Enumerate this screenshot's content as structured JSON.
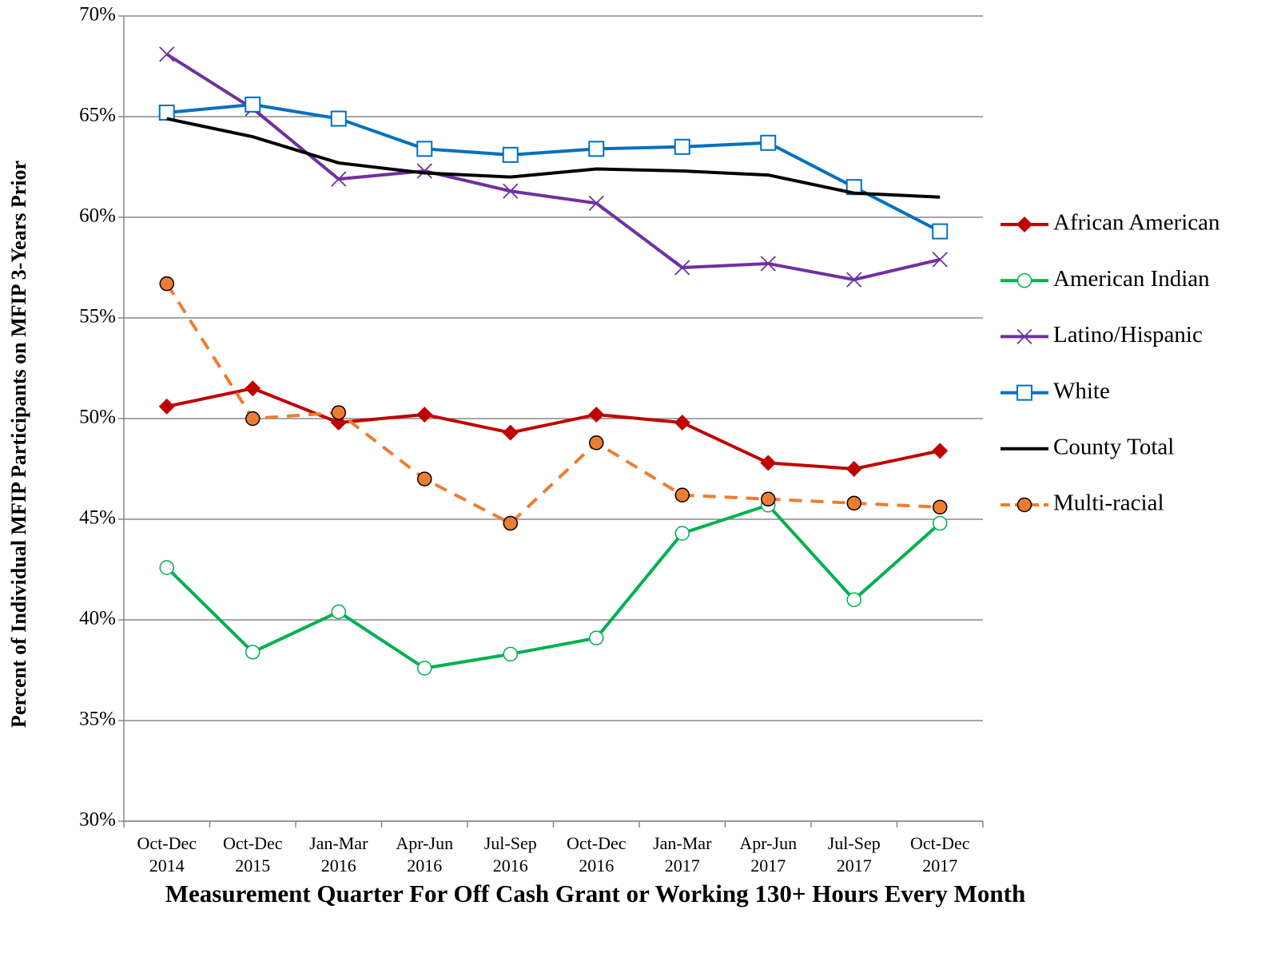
{
  "chart_data": {
    "type": "line",
    "x_label": "Measurement Quarter For Off Cash Grant or Working 130+ Hours Every Month",
    "y_label": "Percent of Individual MFIP Participants on MFIP 3-Years Prior",
    "categories": [
      "Oct-Dec 2014",
      "Oct-Dec 2015",
      "Jan-Mar 2016",
      "Apr-Jun 2016",
      "Jul-Sep 2016",
      "Oct-Dec 2016",
      "Jan-Mar 2017",
      "Apr-Jun 2017",
      "Jul-Sep 2017",
      "Oct-Dec 2017"
    ],
    "ylim": [
      30,
      70
    ],
    "yticks": [
      {
        "value": 30,
        "label": "30%"
      },
      {
        "value": 35,
        "label": "35%"
      },
      {
        "value": 40,
        "label": "40%"
      },
      {
        "value": 45,
        "label": "45%"
      },
      {
        "value": 50,
        "label": "50%"
      },
      {
        "value": 55,
        "label": "55%"
      },
      {
        "value": 60,
        "label": "60%"
      },
      {
        "value": 65,
        "label": "65%"
      },
      {
        "value": 70,
        "label": "70%"
      }
    ],
    "grid": true,
    "legend": "right",
    "series": [
      {
        "name": "African American",
        "color": "#c00000",
        "marker": "diamond",
        "dash": false,
        "values": [
          50.6,
          51.5,
          49.8,
          50.2,
          49.3,
          50.2,
          49.8,
          47.8,
          47.5,
          48.4
        ]
      },
      {
        "name": "American Indian",
        "color": "#00b050",
        "marker": "circle-open",
        "dash": false,
        "values": [
          42.6,
          38.4,
          40.4,
          37.6,
          38.3,
          39.1,
          44.3,
          45.7,
          41.0,
          44.8
        ]
      },
      {
        "name": "Latino/Hispanic",
        "color": "#7030a0",
        "marker": "x",
        "dash": false,
        "values": [
          68.1,
          65.4,
          61.9,
          62.3,
          61.3,
          60.7,
          57.5,
          57.7,
          56.9,
          57.9
        ]
      },
      {
        "name": "White",
        "color": "#0070c0",
        "marker": "square-open",
        "dash": false,
        "values": [
          65.2,
          65.6,
          64.9,
          63.4,
          63.1,
          63.4,
          63.5,
          63.7,
          61.5,
          59.3
        ]
      },
      {
        "name": "County Total",
        "color": "#000000",
        "marker": "none",
        "dash": false,
        "values": [
          64.9,
          64.0,
          62.7,
          62.2,
          62.0,
          62.4,
          62.3,
          62.1,
          61.2,
          61.0
        ]
      },
      {
        "name": "Multi-racial",
        "color": "#ed7d31",
        "marker": "circle",
        "dash": true,
        "values": [
          56.7,
          50.0,
          50.3,
          47.0,
          44.8,
          48.8,
          46.2,
          46.0,
          45.8,
          45.6
        ]
      }
    ]
  }
}
